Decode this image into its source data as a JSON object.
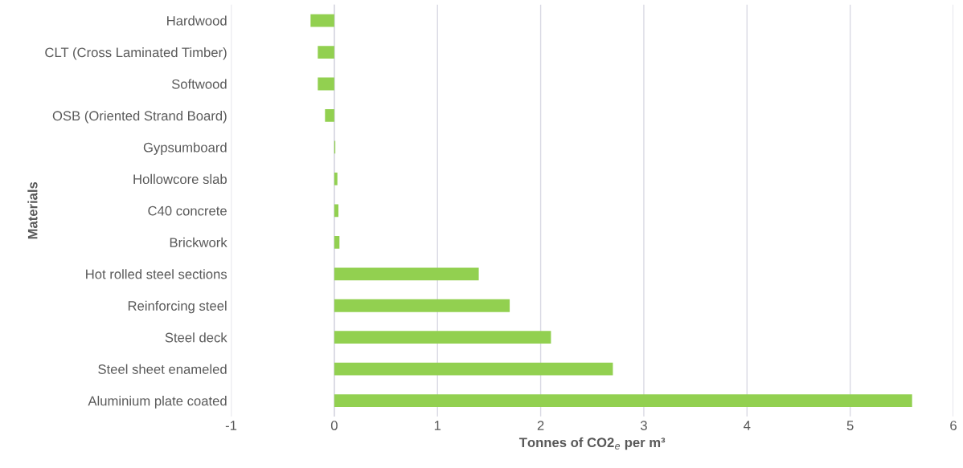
{
  "chart_data": {
    "type": "bar",
    "orientation": "horizontal",
    "xlabel": "Tonnes of CO2$_{e}$ per m³",
    "ylabel": "Materials",
    "categories": [
      "Hardwood",
      "CLT (Cross Laminated Timber)",
      "Softwood",
      "OSB (Oriented Strand Board)",
      "Gypsumboard",
      "Hollowcore slab",
      "C40 concrete",
      "Brickwork",
      "Hot rolled steel sections",
      "Reinforcing steel",
      "Steel deck",
      "Steel sheet enameled",
      "Aluminium plate coated"
    ],
    "values": [
      -0.23,
      -0.16,
      -0.16,
      -0.09,
      0.01,
      0.03,
      0.04,
      0.05,
      1.4,
      1.7,
      2.1,
      2.7,
      5.6
    ],
    "color": "#92d050",
    "xlim": [
      -1,
      6
    ],
    "xticks": [
      -1,
      0,
      1,
      2,
      3,
      4,
      5,
      6
    ],
    "grid": "x",
    "legend": false
  }
}
